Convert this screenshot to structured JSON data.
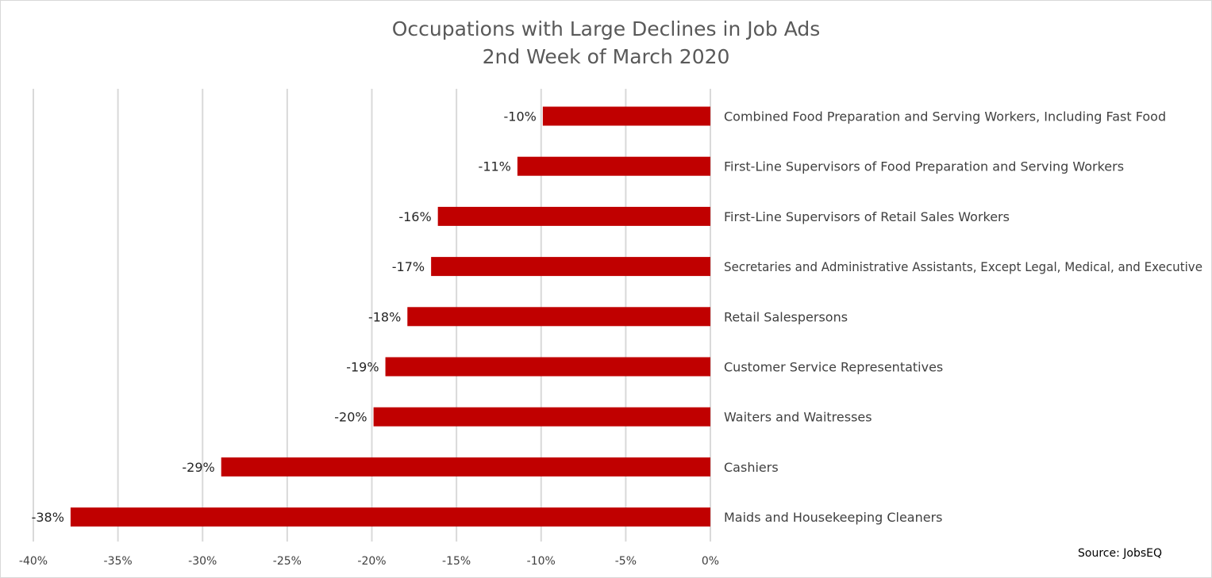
{
  "chart_data": {
    "type": "bar",
    "orientation": "horizontal",
    "title_lines": [
      "Occupations with Large Declines in Job Ads",
      "2nd Week of March 2020"
    ],
    "categories": [
      "Combined Food Preparation and Serving Workers, Including Fast Food",
      "First-Line Supervisors of Food Preparation and Serving Workers",
      "First-Line Supervisors of Retail Sales Workers",
      "Secretaries and Administrative Assistants, Except Legal, Medical, and Executive",
      "Retail Salespersons",
      "Customer Service Representatives",
      "Waiters and Waitresses",
      "Cashiers",
      "Maids and Housekeeping Cleaners"
    ],
    "values": [
      -9.9,
      -11.4,
      -16.1,
      -16.5,
      -17.9,
      -19.2,
      -19.9,
      -28.9,
      -37.8
    ],
    "data_labels": [
      "-10%",
      "-11%",
      "-16%",
      "-17%",
      "-18%",
      "-19%",
      "-20%",
      "-29%",
      "-38%"
    ],
    "xlim": [
      -40,
      0
    ],
    "x_ticks": [
      -40,
      -35,
      -30,
      -25,
      -20,
      -15,
      -10,
      -5,
      0
    ],
    "x_tick_labels": [
      "-40%",
      "-35%",
      "-30%",
      "-25%",
      "-20%",
      "-15%",
      "-10%",
      "-5%",
      "0%"
    ],
    "grid": "vertical",
    "bar_color": "#c00000",
    "grid_color": "#d9d9d9",
    "source": "Source: JobsEQ"
  }
}
